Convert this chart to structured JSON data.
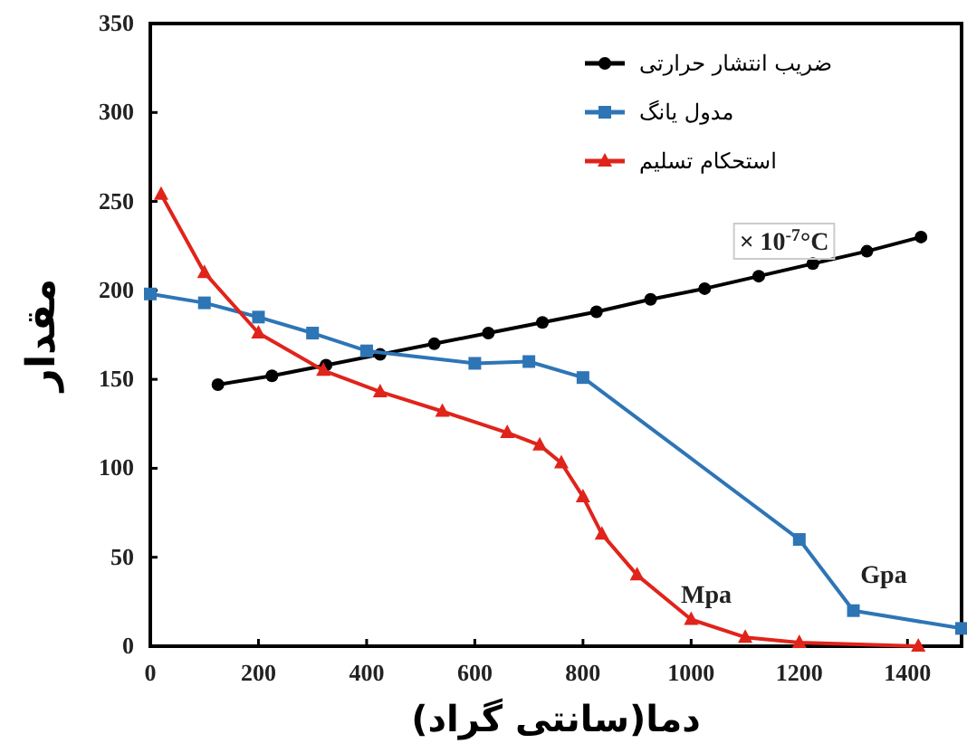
{
  "chart_data": {
    "type": "line",
    "xlabel": "دما(سانتی گراد)",
    "ylabel": "مقدار",
    "xlim": [
      0,
      1500
    ],
    "xticks": [
      0,
      200,
      400,
      600,
      800,
      1000,
      1200,
      1400
    ],
    "ylim": [
      0,
      350
    ],
    "yticks": [
      0,
      50,
      100,
      150,
      200,
      250,
      300,
      350
    ],
    "legend": "top right",
    "grid": false,
    "series": [
      {
        "name": "ضریب انتشار حرارتی",
        "color": "#000000",
        "marker": "circle",
        "x": [
          125,
          225,
          325,
          425,
          525,
          625,
          725,
          825,
          925,
          1025,
          1125,
          1225,
          1325,
          1425
        ],
        "values": [
          147,
          152,
          158,
          164,
          170,
          176,
          182,
          188,
          195,
          201,
          208,
          215,
          222,
          230
        ]
      },
      {
        "name": "مدول یانگ",
        "color": "#2e75b6",
        "marker": "square",
        "x": [
          0,
          100,
          200,
          300,
          400,
          600,
          700,
          800,
          1200,
          1300,
          1500
        ],
        "values": [
          198,
          193,
          185,
          176,
          166,
          159,
          160,
          151,
          60,
          20,
          10
        ]
      },
      {
        "name": "استحکام تسلیم",
        "color": "#e0241b",
        "marker": "triangle",
        "x": [
          20,
          100,
          200,
          320,
          425,
          540,
          660,
          720,
          760,
          800,
          835,
          900,
          1000,
          1100,
          1200,
          1420
        ],
        "values": [
          254,
          210,
          176,
          155,
          143,
          132,
          120,
          113,
          103,
          84,
          63,
          40,
          15,
          5,
          2,
          0
        ]
      }
    ],
    "annotations": [
      "× 10$^{-7}$°C",
      "Mpa",
      "Gpa"
    ]
  }
}
